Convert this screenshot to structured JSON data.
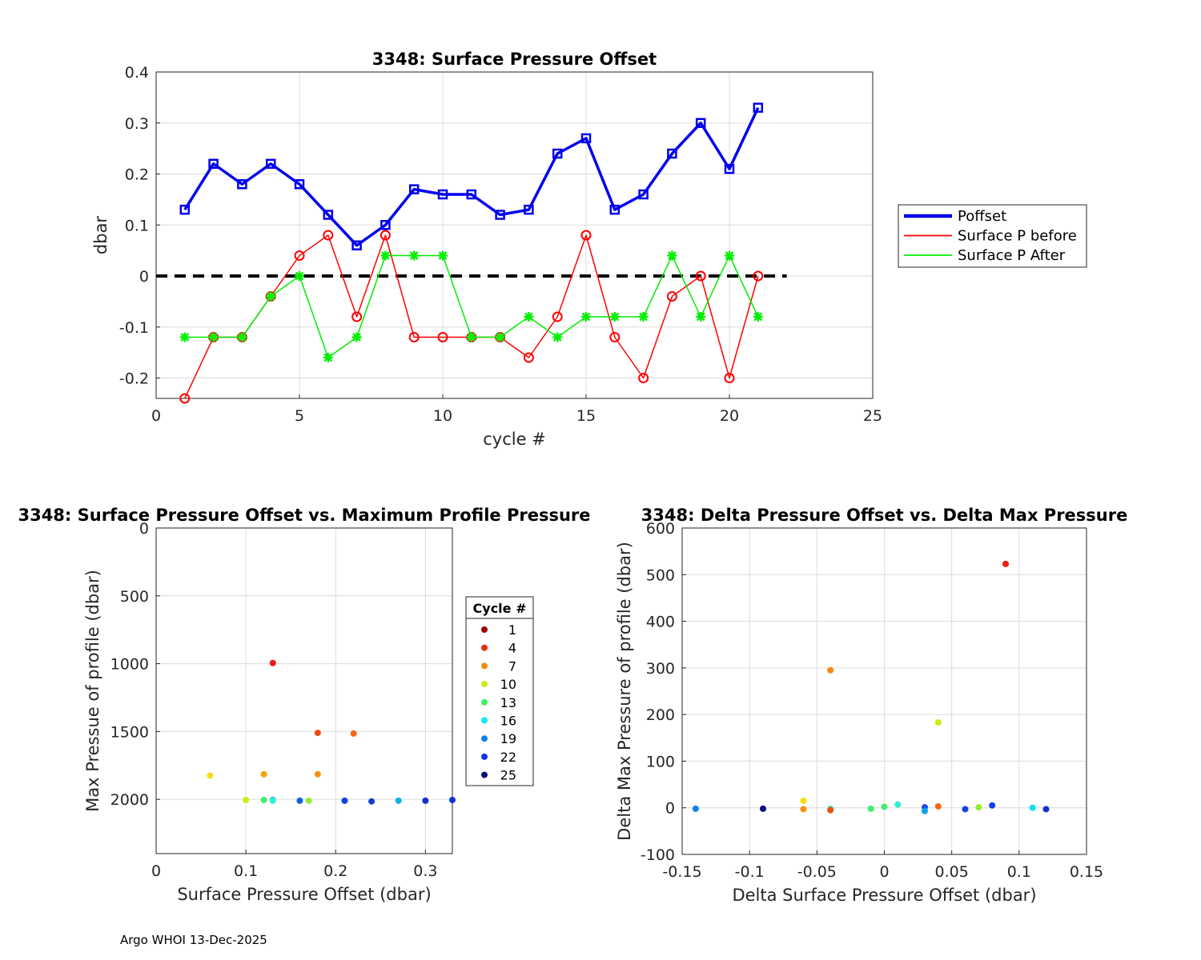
{
  "footer": "Argo WHOI 13-Dec-2025",
  "chart_data": [
    {
      "type": "line",
      "title": "3348: Surface Pressure Offset",
      "xlabel": "cycle #",
      "ylabel": "dbar",
      "xlim": [
        0,
        25
      ],
      "ylim": [
        -0.24,
        0.4
      ],
      "xticks": [
        "0",
        "5",
        "10",
        "15",
        "20",
        "25"
      ],
      "yticks": [
        "-0.2",
        "-0.1",
        "0",
        "0.1",
        "0.2",
        "0.3",
        "0.4"
      ],
      "grid": true,
      "legend": "right",
      "x": [
        1,
        2,
        3,
        4,
        5,
        6,
        7,
        8,
        9,
        10,
        11,
        12,
        13,
        14,
        15,
        16,
        17,
        18,
        19,
        20,
        21
      ],
      "reference_line": {
        "y": 0,
        "x_range": [
          0,
          22
        ],
        "color": "#000000",
        "style": "dashed"
      },
      "series": [
        {
          "name": "Poffset",
          "color": "#0000ee",
          "marker": "square",
          "values": [
            0.13,
            0.22,
            0.18,
            0.22,
            0.18,
            0.12,
            0.06,
            0.1,
            0.17,
            0.16,
            0.16,
            0.12,
            0.13,
            0.24,
            0.27,
            0.13,
            0.16,
            0.24,
            0.3,
            0.21,
            0.33
          ]
        },
        {
          "name": "Surface P before",
          "color": "#ff0000",
          "marker": "circle",
          "values": [
            -0.24,
            -0.12,
            -0.12,
            -0.04,
            0.04,
            0.08,
            -0.08,
            0.08,
            -0.12,
            -0.12,
            -0.12,
            -0.12,
            -0.16,
            -0.08,
            0.08,
            -0.12,
            -0.2,
            -0.04,
            0.0,
            -0.2,
            0.0
          ]
        },
        {
          "name": "Surface P After",
          "color": "#00ee00",
          "marker": "asterisk",
          "values": [
            -0.12,
            -0.12,
            -0.12,
            -0.04,
            0.0,
            -0.16,
            -0.12,
            0.04,
            0.04,
            0.04,
            -0.12,
            -0.12,
            -0.08,
            -0.12,
            -0.08,
            -0.08,
            -0.08,
            0.04,
            -0.08,
            0.04,
            -0.08
          ]
        }
      ]
    },
    {
      "type": "scatter",
      "title": "3348: Surface Pressure Offset vs. Maximum Profile Pressure",
      "xlabel": "Surface Pressure Offset (dbar)",
      "ylabel": "Max Pressue of profile (dbar)",
      "xlim": [
        0,
        0.33
      ],
      "ylim": [
        0,
        2400
      ],
      "y_reversed": true,
      "xticks": [
        "0",
        "0.1",
        "0.2",
        "0.3"
      ],
      "yticks": [
        "0",
        "500",
        "1000",
        "1500",
        "2000"
      ],
      "grid": true,
      "legend": "right",
      "legend_title": "Cycle #",
      "legend_entries": [
        {
          "label": "1",
          "color": "#9b0000"
        },
        {
          "label": "4",
          "color": "#ef2a0d"
        },
        {
          "label": "7",
          "color": "#f58a10"
        },
        {
          "label": "10",
          "color": "#c9ef10"
        },
        {
          "label": "13",
          "color": "#3ef060"
        },
        {
          "label": "16",
          "color": "#10e8f5"
        },
        {
          "label": "19",
          "color": "#1080ee"
        },
        {
          "label": "22",
          "color": "#1030ee"
        },
        {
          "label": "25",
          "color": "#0a0a80"
        }
      ],
      "points": [
        {
          "x": 0.13,
          "y": 995,
          "color": "#ef1a10"
        },
        {
          "x": 0.18,
          "y": 1510,
          "color": "#f04a10"
        },
        {
          "x": 0.22,
          "y": 1515,
          "color": "#f06a10"
        },
        {
          "x": 0.06,
          "y": 1825,
          "color": "#f5e010"
        },
        {
          "x": 0.12,
          "y": 1815,
          "color": "#f5a010"
        },
        {
          "x": 0.18,
          "y": 1815,
          "color": "#f59010"
        },
        {
          "x": 0.1,
          "y": 2005,
          "color": "#c9ef10"
        },
        {
          "x": 0.12,
          "y": 2005,
          "color": "#40ee70"
        },
        {
          "x": 0.13,
          "y": 2005,
          "color": "#1090ee"
        },
        {
          "x": 0.13,
          "y": 2010,
          "color": "#30f5d0"
        },
        {
          "x": 0.16,
          "y": 2010,
          "color": "#1060ee"
        },
        {
          "x": 0.17,
          "y": 2010,
          "color": "#90ee30"
        },
        {
          "x": 0.21,
          "y": 2010,
          "color": "#1040ee"
        },
        {
          "x": 0.24,
          "y": 2015,
          "color": "#1040d0"
        },
        {
          "x": 0.27,
          "y": 2010,
          "color": "#10b0f0"
        },
        {
          "x": 0.3,
          "y": 2010,
          "color": "#1030d0"
        },
        {
          "x": 0.33,
          "y": 2005,
          "color": "#1030ee"
        }
      ]
    },
    {
      "type": "scatter",
      "title": "3348: Delta Pressure Offset vs. Delta Max Pressure",
      "xlabel": "Delta Surface Pressure Offset (dbar)",
      "ylabel": "Delta Max Pressure of profile (dbar)",
      "xlim": [
        -0.15,
        0.15
      ],
      "ylim": [
        -100,
        600
      ],
      "xticks": [
        "-0.15",
        "-0.1",
        "-0.05",
        "0",
        "0.05",
        "0.1",
        "0.15"
      ],
      "yticks": [
        "-100",
        "0",
        "100",
        "200",
        "300",
        "400",
        "500",
        "600"
      ],
      "grid": true,
      "points": [
        {
          "x": 0.09,
          "y": 523,
          "color": "#ef1a10"
        },
        {
          "x": -0.04,
          "y": 295,
          "color": "#f58a10"
        },
        {
          "x": 0.04,
          "y": 183,
          "color": "#c9ef10"
        },
        {
          "x": -0.06,
          "y": 15,
          "color": "#f5e010"
        },
        {
          "x": -0.14,
          "y": -2,
          "color": "#1080ee"
        },
        {
          "x": -0.09,
          "y": -2,
          "color": "#0a0a80"
        },
        {
          "x": -0.06,
          "y": -3,
          "color": "#f59010"
        },
        {
          "x": -0.04,
          "y": -2,
          "color": "#40f0b0"
        },
        {
          "x": -0.04,
          "y": -5,
          "color": "#ef4a10"
        },
        {
          "x": -0.01,
          "y": -2,
          "color": "#40ee70"
        },
        {
          "x": 0.0,
          "y": 2,
          "color": "#40ee70"
        },
        {
          "x": 0.01,
          "y": 7,
          "color": "#30f0d0"
        },
        {
          "x": 0.03,
          "y": 1,
          "color": "#1050ee"
        },
        {
          "x": 0.03,
          "y": -7,
          "color": "#10a0ee"
        },
        {
          "x": 0.04,
          "y": 3,
          "color": "#f06a10"
        },
        {
          "x": 0.06,
          "y": -3,
          "color": "#1040ee"
        },
        {
          "x": 0.07,
          "y": 1,
          "color": "#90ee30"
        },
        {
          "x": 0.08,
          "y": 5,
          "color": "#1040ee"
        },
        {
          "x": 0.11,
          "y": 0,
          "color": "#10e0f0"
        },
        {
          "x": 0.12,
          "y": -3,
          "color": "#1030d0"
        }
      ]
    }
  ]
}
